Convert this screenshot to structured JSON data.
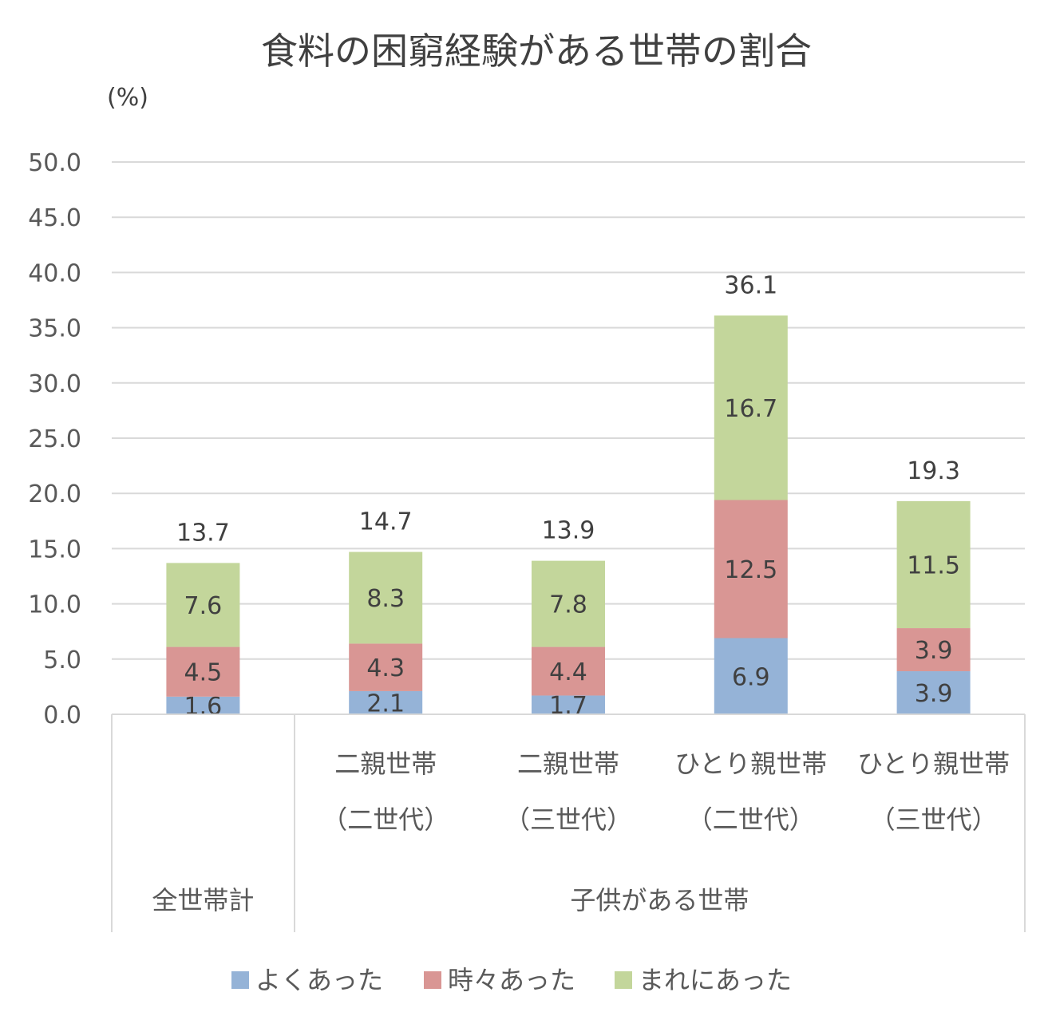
{
  "chart_data": {
    "type": "bar",
    "stacked": true,
    "title": "食料の困窮経験がある世帯の割合",
    "y_unit": "(%)",
    "ylim": [
      0,
      50
    ],
    "y_ticks": [
      "0.0",
      "5.0",
      "10.0",
      "15.0",
      "20.0",
      "25.0",
      "30.0",
      "35.0",
      "40.0",
      "45.0",
      "50.0"
    ],
    "grid": true,
    "legend_position": "bottom",
    "categories": [
      {
        "line1": "",
        "line2": ""
      },
      {
        "line1": "二親世帯",
        "line2": "（二世代）"
      },
      {
        "line1": "二親世帯",
        "line2": "（三世代）"
      },
      {
        "line1": "ひとり親世帯",
        "line2": "（二世代）"
      },
      {
        "line1": "ひとり親世帯",
        "line2": "（三世代）"
      }
    ],
    "groups": [
      {
        "label": "全世帯計",
        "span": [
          0,
          0
        ]
      },
      {
        "label": "子供がある世帯",
        "span": [
          1,
          4
        ]
      }
    ],
    "series": [
      {
        "name": "よくあった",
        "color": "#95b3d7",
        "values": [
          1.6,
          2.1,
          1.7,
          6.9,
          3.9
        ],
        "labels": [
          "1.6",
          "2.1",
          "1.7",
          "6.9",
          "3.9"
        ]
      },
      {
        "name": "時々あった",
        "color": "#d99694",
        "values": [
          4.5,
          4.3,
          4.4,
          12.5,
          3.9
        ],
        "labels": [
          "4.5",
          "4.3",
          "4.4",
          "12.5",
          "3.9"
        ]
      },
      {
        "name": "まれにあった",
        "color": "#c3d69b",
        "values": [
          7.6,
          8.3,
          7.8,
          16.7,
          11.5
        ],
        "labels": [
          "7.6",
          "8.3",
          "7.8",
          "16.7",
          "11.5"
        ]
      }
    ],
    "totals": [
      13.7,
      14.7,
      13.9,
      36.1,
      19.3
    ],
    "total_labels": [
      "13.7",
      "14.7",
      "13.9",
      "36.1",
      "19.3"
    ]
  }
}
